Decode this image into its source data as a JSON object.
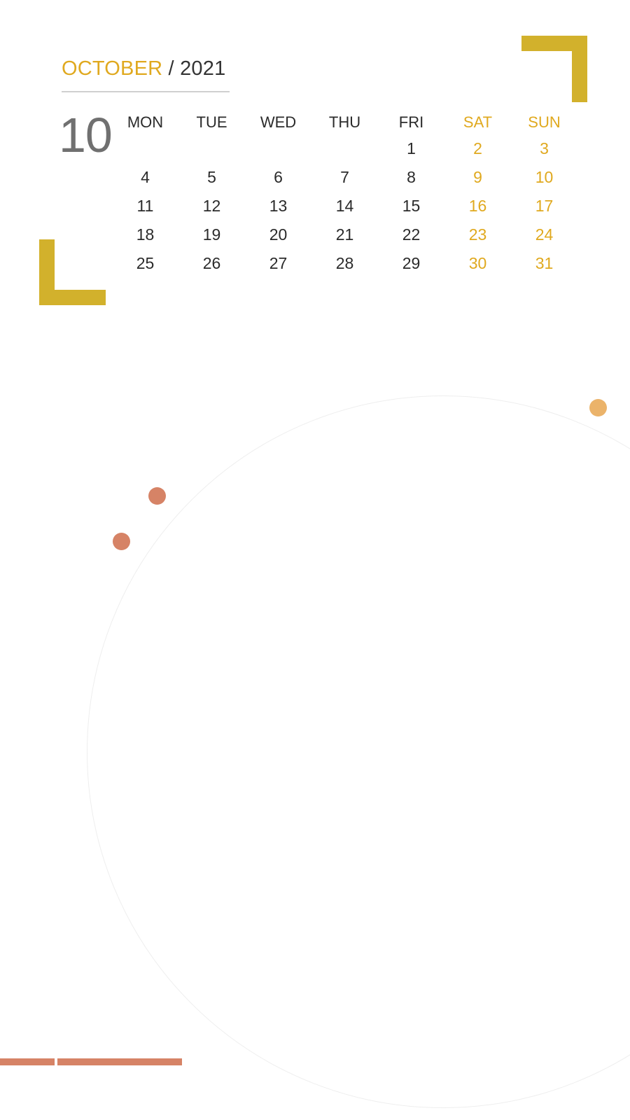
{
  "header": {
    "month": "OCTOBER",
    "separator": "/",
    "year": "2021",
    "month_number": "10"
  },
  "weekdays": [
    "MON",
    "TUE",
    "WED",
    "THU",
    "FRI",
    "SAT",
    "SUN"
  ],
  "weeks": [
    [
      "",
      "",
      "",
      "",
      "1",
      "2",
      "3"
    ],
    [
      "4",
      "5",
      "6",
      "7",
      "8",
      "9",
      "10"
    ],
    [
      "11",
      "12",
      "13",
      "14",
      "15",
      "16",
      "17"
    ],
    [
      "18",
      "19",
      "20",
      "21",
      "22",
      "23",
      "24"
    ],
    [
      "25",
      "26",
      "27",
      "28",
      "29",
      "30",
      "31"
    ]
  ],
  "colors": {
    "accent_gold": "#e0a91f",
    "bracket": "#d2b12c",
    "dot_orange": "#ebb36a",
    "dot_terracotta": "#d68366",
    "text": "#2b2b2b",
    "month_number": "#707070"
  }
}
